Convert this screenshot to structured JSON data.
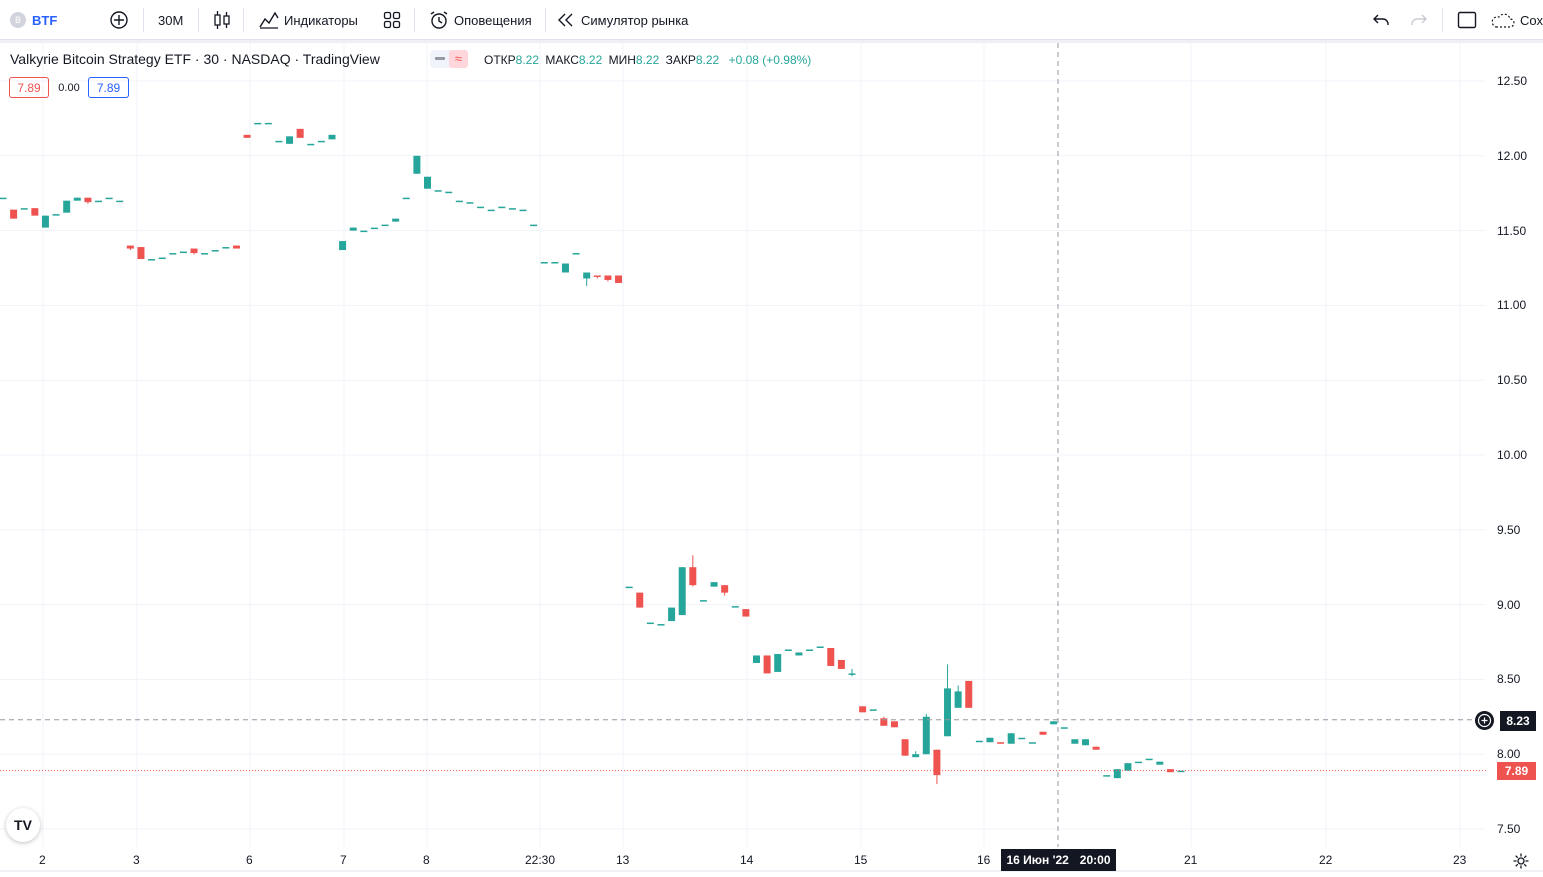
{
  "toolbar": {
    "symbol": "BTF",
    "symbol_badge": "B",
    "interval": "30M",
    "indicators_label": "Индикаторы",
    "alerts_label": "Оповещения",
    "replay_label": "Симулятор рынка",
    "save_label": "Сох"
  },
  "legend": {
    "title": "Valkyrie Bitcoin Strategy ETF · 30 · NASDAQ · TradingView",
    "open_label": "ОТКР",
    "open_value": "8.22",
    "high_label": "МАКС",
    "high_value": "8.22",
    "low_label": "МИН",
    "low_value": "8.22",
    "close_label": "ЗАКР",
    "close_value": "8.22",
    "change": "+0.08 (+0.98%)",
    "bid": "7.89",
    "spread": "0.00",
    "ask": "7.89"
  },
  "price_axis": {
    "ticks": [
      "12.50",
      "12.00",
      "11.50",
      "11.00",
      "10.50",
      "10.00",
      "9.50",
      "9.00",
      "8.50",
      "8.00",
      "7.50"
    ],
    "crosshair_price": "8.23",
    "last_price": "7.89"
  },
  "time_axis": {
    "ticks": [
      "2",
      "3",
      "6",
      "7",
      "8",
      "22:30",
      "13",
      "14",
      "15",
      "16",
      "21",
      "22",
      "23"
    ],
    "crosshair_date": "16 Июн '22",
    "crosshair_time": "20:00"
  },
  "colors": {
    "up": "#26a69a",
    "down": "#ef5350",
    "grid": "#f0f3fa",
    "crosshair": "#9598a1"
  },
  "logo_text": "TV",
  "chart_data": {
    "type": "candlestick",
    "ylim": [
      7.4,
      12.7
    ],
    "x_ticks": [
      "2",
      "3",
      "6",
      "7",
      "8",
      "22:30",
      "13",
      "14",
      "15",
      "16",
      "21",
      "22",
      "23"
    ],
    "candles": [
      [
        11.72,
        11.72,
        11.72,
        11.72
      ],
      [
        11.64,
        11.64,
        11.58,
        11.58
      ],
      [
        11.65,
        11.65,
        11.65,
        11.65
      ],
      [
        11.65,
        11.65,
        11.6,
        11.6
      ],
      [
        11.52,
        11.6,
        11.52,
        11.6
      ],
      [
        11.61,
        11.61,
        11.61,
        11.61
      ],
      [
        11.62,
        11.7,
        11.62,
        11.7
      ],
      [
        11.7,
        11.72,
        11.7,
        11.72
      ],
      [
        11.72,
        11.72,
        11.68,
        11.69
      ],
      [
        11.7,
        11.7,
        11.7,
        11.7
      ],
      [
        11.72,
        11.72,
        11.72,
        11.72
      ],
      [
        11.7,
        11.7,
        11.7,
        11.7
      ],
      [
        11.4,
        11.4,
        11.37,
        11.38
      ],
      [
        11.39,
        11.39,
        11.31,
        11.31
      ],
      [
        11.31,
        11.31,
        11.31,
        11.31
      ],
      [
        11.32,
        11.32,
        11.32,
        11.32
      ],
      [
        11.35,
        11.35,
        11.35,
        11.35
      ],
      [
        11.36,
        11.36,
        11.36,
        11.36
      ],
      [
        11.38,
        11.38,
        11.34,
        11.35
      ],
      [
        11.35,
        11.35,
        11.35,
        11.35
      ],
      [
        11.37,
        11.37,
        11.37,
        11.37
      ],
      [
        11.38,
        11.39,
        11.38,
        11.39
      ],
      [
        11.4,
        11.4,
        11.38,
        11.38
      ],
      [
        12.14,
        12.14,
        12.12,
        12.12
      ],
      [
        12.22,
        12.22,
        12.22,
        12.22
      ],
      [
        12.22,
        12.22,
        12.22,
        12.22
      ],
      [
        12.1,
        12.1,
        12.1,
        12.1
      ],
      [
        12.08,
        12.13,
        12.08,
        12.13
      ],
      [
        12.18,
        12.18,
        12.12,
        12.12
      ],
      [
        12.08,
        12.08,
        12.08,
        12.08
      ],
      [
        12.1,
        12.1,
        12.1,
        12.1
      ],
      [
        12.11,
        12.14,
        12.11,
        12.14
      ],
      [
        11.37,
        11.43,
        11.37,
        11.43
      ],
      [
        11.5,
        11.52,
        11.5,
        11.52
      ],
      [
        11.5,
        11.5,
        11.5,
        11.5
      ],
      [
        11.52,
        11.52,
        11.52,
        11.52
      ],
      [
        11.54,
        11.54,
        11.54,
        11.54
      ],
      [
        11.56,
        11.58,
        11.56,
        11.58
      ],
      [
        11.72,
        11.72,
        11.72,
        11.72
      ],
      [
        11.88,
        12.0,
        11.88,
        12.0
      ],
      [
        11.78,
        11.86,
        11.78,
        11.86
      ],
      [
        11.77,
        11.77,
        11.77,
        11.77
      ],
      [
        11.76,
        11.76,
        11.76,
        11.76
      ],
      [
        11.7,
        11.7,
        11.7,
        11.7
      ],
      [
        11.69,
        11.69,
        11.69,
        11.69
      ],
      [
        11.66,
        11.66,
        11.66,
        11.66
      ],
      [
        11.64,
        11.64,
        11.64,
        11.64
      ],
      [
        11.66,
        11.66,
        11.66,
        11.66
      ],
      [
        11.65,
        11.65,
        11.65,
        11.65
      ],
      [
        11.64,
        11.64,
        11.64,
        11.64
      ],
      [
        11.54,
        11.54,
        11.54,
        11.54
      ],
      [
        11.29,
        11.29,
        11.29,
        11.29
      ],
      [
        11.29,
        11.29,
        11.29,
        11.29
      ],
      [
        11.22,
        11.28,
        11.22,
        11.28
      ],
      [
        11.35,
        11.35,
        11.35,
        11.35
      ],
      [
        11.18,
        11.22,
        11.13,
        11.22
      ],
      [
        11.2,
        11.2,
        11.18,
        11.19
      ],
      [
        11.2,
        11.2,
        11.16,
        11.17
      ],
      [
        11.2,
        11.2,
        11.15,
        11.15
      ],
      [
        9.12,
        9.12,
        9.12,
        9.12
      ],
      [
        9.08,
        9.08,
        8.98,
        8.98
      ],
      [
        8.88,
        8.88,
        8.88,
        8.88
      ],
      [
        8.87,
        8.87,
        8.87,
        8.87
      ],
      [
        8.89,
        8.98,
        8.89,
        8.98
      ],
      [
        8.93,
        9.25,
        8.93,
        9.25
      ],
      [
        9.25,
        9.33,
        9.12,
        9.13
      ],
      [
        9.03,
        9.03,
        9.03,
        9.03
      ],
      [
        9.12,
        9.15,
        9.12,
        9.15
      ],
      [
        9.13,
        9.13,
        9.06,
        9.08
      ],
      [
        8.99,
        8.99,
        8.99,
        8.99
      ],
      [
        8.97,
        8.97,
        8.92,
        8.92
      ],
      [
        8.61,
        8.66,
        8.61,
        8.66
      ],
      [
        8.66,
        8.66,
        8.54,
        8.54
      ],
      [
        8.55,
        8.67,
        8.55,
        8.67
      ],
      [
        8.7,
        8.7,
        8.7,
        8.7
      ],
      [
        8.66,
        8.68,
        8.66,
        8.68
      ],
      [
        8.7,
        8.7,
        8.7,
        8.7
      ],
      [
        8.72,
        8.72,
        8.72,
        8.72
      ],
      [
        8.71,
        8.71,
        8.59,
        8.59
      ],
      [
        8.63,
        8.63,
        8.57,
        8.57
      ],
      [
        8.54,
        8.57,
        8.52,
        8.54
      ],
      [
        8.32,
        8.32,
        8.28,
        8.28
      ],
      [
        8.3,
        8.3,
        8.3,
        8.3
      ],
      [
        8.24,
        8.25,
        8.19,
        8.19
      ],
      [
        8.22,
        8.22,
        8.18,
        8.18
      ],
      [
        8.1,
        8.1,
        7.99,
        7.99
      ],
      [
        7.98,
        8.02,
        7.98,
        8.0
      ],
      [
        8.0,
        8.27,
        8.0,
        8.25
      ],
      [
        8.03,
        8.03,
        7.8,
        7.86
      ],
      [
        8.12,
        8.6,
        8.12,
        8.44
      ],
      [
        8.31,
        8.46,
        8.31,
        8.42
      ],
      [
        8.49,
        8.49,
        8.31,
        8.31
      ],
      [
        8.09,
        8.09,
        8.09,
        8.09
      ],
      [
        8.08,
        8.11,
        8.08,
        8.11
      ],
      [
        8.08,
        8.08,
        8.07,
        8.07
      ],
      [
        8.07,
        8.14,
        8.07,
        8.14
      ],
      [
        8.11,
        8.11,
        8.11,
        8.11
      ],
      [
        8.08,
        8.08,
        8.08,
        8.08
      ],
      [
        8.15,
        8.15,
        8.13,
        8.13
      ],
      [
        8.2,
        8.22,
        8.2,
        8.22
      ],
      [
        8.18,
        8.18,
        8.18,
        8.18
      ],
      [
        8.07,
        8.1,
        8.07,
        8.1
      ],
      [
        8.06,
        8.1,
        8.06,
        8.1
      ],
      [
        8.05,
        8.05,
        8.03,
        8.03
      ],
      [
        7.86,
        7.86,
        7.86,
        7.86
      ],
      [
        7.84,
        7.9,
        7.84,
        7.9
      ],
      [
        7.89,
        7.94,
        7.89,
        7.94
      ],
      [
        7.95,
        7.95,
        7.95,
        7.95
      ],
      [
        7.97,
        7.97,
        7.97,
        7.97
      ],
      [
        7.93,
        7.95,
        7.93,
        7.95
      ],
      [
        7.9,
        7.9,
        7.88,
        7.88
      ],
      [
        7.89,
        7.89,
        7.89,
        7.89
      ]
    ]
  }
}
